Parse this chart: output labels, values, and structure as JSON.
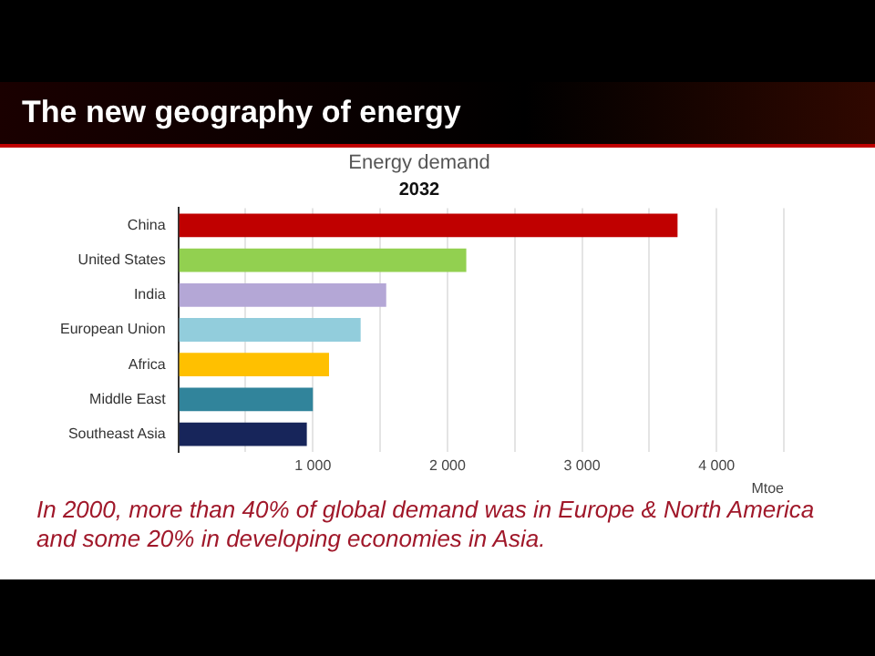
{
  "chart_data": {
    "type": "bar",
    "orientation": "horizontal",
    "title": "Energy demand",
    "subtitle": "2032",
    "xlabel": "Mtoe",
    "annotations": [
      "The new geography of energy",
      "In 2000, more than 40% of global demand was in Europe & North America and some 20% in developing economies in Asia."
    ],
    "categories": [
      "China",
      "United States",
      "India",
      "European Union",
      "Africa",
      "Middle East",
      "Southeast Asia"
    ],
    "values": [
      3710,
      2140,
      1545,
      1355,
      1120,
      1000,
      955
    ],
    "colors": [
      "#c00000",
      "#92d050",
      "#b4a7d6",
      "#92cddc",
      "#ffc000",
      "#31849b",
      "#17255a"
    ],
    "xlim": [
      0,
      4500
    ],
    "xticks": [
      {
        "value": 0,
        "label": null
      },
      {
        "value": 500,
        "label": null
      },
      {
        "value": 1000,
        "label": "1 000"
      },
      {
        "value": 1500,
        "label": null
      },
      {
        "value": 2000,
        "label": "2 000"
      },
      {
        "value": 2500,
        "label": null
      },
      {
        "value": 3000,
        "label": "3 000"
      },
      {
        "value": 3500,
        "label": null
      },
      {
        "value": 4000,
        "label": "4 000"
      },
      {
        "value": 4500,
        "label": null
      }
    ],
    "grid": "x",
    "legend": false
  }
}
